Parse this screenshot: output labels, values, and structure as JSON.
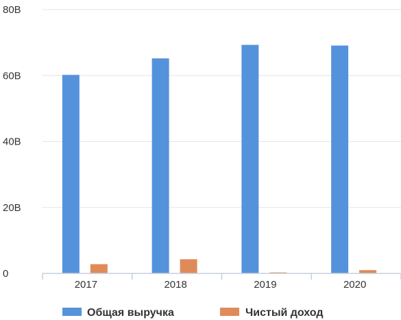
{
  "chart_data": {
    "type": "bar",
    "categories": [
      "2017",
      "2018",
      "2019",
      "2020"
    ],
    "series": [
      {
        "name": "Общая выручка",
        "values": [
          60.2,
          65.2,
          69.3,
          69.1
        ],
        "color": "#5592dc"
      },
      {
        "name": "Чистый доход",
        "values": [
          2.8,
          4.3,
          0.3,
          1.0
        ],
        "color": "#e08a5a"
      }
    ],
    "y_ticks": [
      {
        "value": 0,
        "label": "0"
      },
      {
        "value": 20,
        "label": "20B"
      },
      {
        "value": 40,
        "label": "40B"
      },
      {
        "value": 60,
        "label": "60B"
      },
      {
        "value": 80,
        "label": "80B"
      }
    ],
    "ylim": [
      0,
      80
    ],
    "grid": true,
    "legend_position": "bottom",
    "colors": {
      "grid": "#e3e6ea",
      "axis": "#c5cfdb",
      "text": "#333333"
    }
  }
}
